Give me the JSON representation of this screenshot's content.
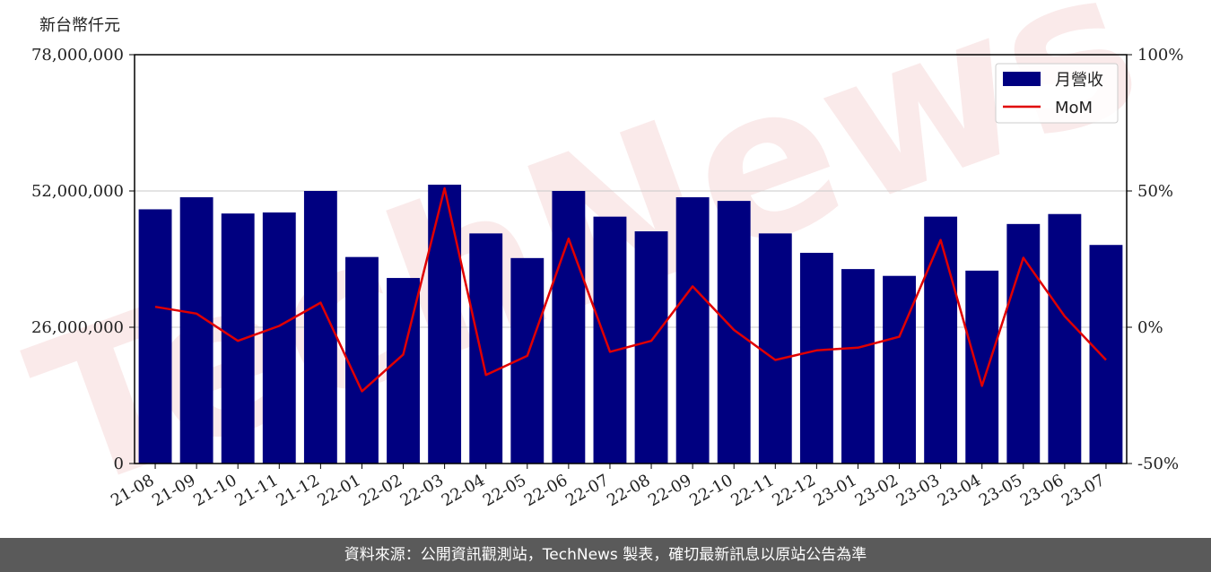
{
  "chart_data": {
    "type": "bar",
    "y_unit_label": "新台幣仟元",
    "categories": [
      "21-08",
      "21-09",
      "21-10",
      "21-11",
      "21-12",
      "22-01",
      "22-02",
      "22-03",
      "22-04",
      "22-05",
      "22-06",
      "22-07",
      "22-08",
      "22-09",
      "22-10",
      "22-11",
      "22-12",
      "23-01",
      "23-02",
      "23-03",
      "23-04",
      "23-05",
      "23-06",
      "23-07"
    ],
    "series": [
      {
        "name": "月營收",
        "type": "bar",
        "axis": "left",
        "color": "#000080",
        "values": [
          48500000,
          50800000,
          47700000,
          47900000,
          52000000,
          39400000,
          35400000,
          53200000,
          43900000,
          39200000,
          52000000,
          47100000,
          44300000,
          50800000,
          50100000,
          43900000,
          40200000,
          37100000,
          35800000,
          47100000,
          36800000,
          45700000,
          47600000,
          41700000
        ]
      },
      {
        "name": "MoM",
        "type": "line",
        "axis": "right",
        "color": "#e00000",
        "values": [
          7.5,
          5,
          -5,
          0.5,
          9,
          -23.5,
          -10,
          51,
          -17.5,
          -10.5,
          32.5,
          -9,
          -5,
          15,
          -1,
          -12,
          -8.5,
          -7.5,
          -3.5,
          32,
          -21.5,
          25.5,
          4,
          -12
        ]
      }
    ],
    "ylim_left": [
      0,
      78000000
    ],
    "yticks_left": [
      "0",
      "26,000,000",
      "52,000,000",
      "78,000,000"
    ],
    "ylim_right": [
      -50,
      100
    ],
    "yticks_right": [
      "-50%",
      "0%",
      "50%",
      "100%"
    ],
    "grid": "horizontal",
    "legend_position": "top-right"
  },
  "watermark": "TechNews",
  "footer": {
    "text": "資料來源：公開資訊觀測站，TechNews 製表，確切最新訊息以原站公告為準"
  }
}
